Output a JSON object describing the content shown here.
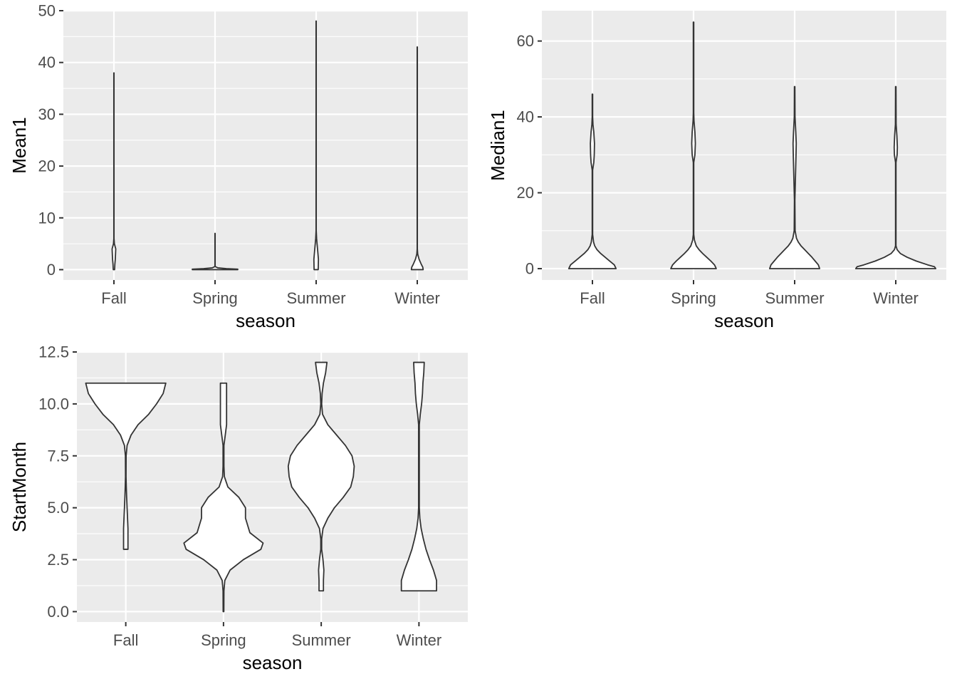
{
  "chart_data": [
    {
      "type": "violin",
      "xlabel": "season",
      "ylabel": "Mean1",
      "categories": [
        "Fall",
        "Spring",
        "Summer",
        "Winter"
      ],
      "ylim": [
        -2,
        50
      ],
      "y_ticks": [
        0,
        10,
        20,
        30,
        40,
        50
      ],
      "y_tick_labels": [
        "0",
        "10",
        "20",
        "30",
        "40",
        "50"
      ],
      "grid": true,
      "violins": [
        {
          "category": "Fall",
          "profile": [
            [
              0,
              0.015
            ],
            [
              1,
              0.02
            ],
            [
              2,
              0.03
            ],
            [
              3,
              0.035
            ],
            [
              4,
              0.04
            ],
            [
              5,
              0.01
            ],
            [
              6,
              0.0022
            ],
            [
              38,
              0.0022
            ]
          ]
        },
        {
          "category": "Spring",
          "profile": [
            [
              0,
              0.5
            ],
            [
              0.1,
              0.5
            ],
            [
              0.2,
              0.25
            ],
            [
              0.35,
              0.06
            ],
            [
              0.6,
              0.0022
            ],
            [
              7,
              0.0022
            ]
          ]
        },
        {
          "category": "Summer",
          "profile": [
            [
              0,
              0.045
            ],
            [
              2,
              0.05
            ],
            [
              4,
              0.03
            ],
            [
              6,
              0.01
            ],
            [
              7.5,
              0.0022
            ],
            [
              48,
              0.0022
            ]
          ]
        },
        {
          "category": "Winter",
          "profile": [
            [
              0,
              0.13
            ],
            [
              0.5,
              0.12
            ],
            [
              1,
              0.09
            ],
            [
              2,
              0.04
            ],
            [
              3,
              0.01
            ],
            [
              4,
              0.0022
            ],
            [
              43,
              0.0022
            ]
          ]
        }
      ]
    },
    {
      "type": "violin",
      "xlabel": "season",
      "ylabel": "Median1",
      "categories": [
        "Fall",
        "Spring",
        "Summer",
        "Winter"
      ],
      "ylim": [
        -3,
        68
      ],
      "y_ticks": [
        0,
        20,
        40,
        60
      ],
      "y_tick_labels": [
        "0",
        "20",
        "40",
        "60"
      ],
      "grid": true,
      "violins": [
        {
          "category": "Fall",
          "profile": [
            [
              0,
              0.52
            ],
            [
              1,
              0.48
            ],
            [
              2,
              0.38
            ],
            [
              3,
              0.28
            ],
            [
              4,
              0.18
            ],
            [
              5,
              0.1
            ],
            [
              6,
              0.05
            ],
            [
              7,
              0.025
            ],
            [
              9,
              0.005
            ],
            [
              26,
              0.005
            ],
            [
              28,
              0.03
            ],
            [
              30,
              0.04
            ],
            [
              33,
              0.045
            ],
            [
              36,
              0.03
            ],
            [
              38,
              0.012
            ],
            [
              40,
              0.005
            ],
            [
              46,
              0.005
            ]
          ]
        },
        {
          "category": "Spring",
          "profile": [
            [
              0,
              0.5
            ],
            [
              1,
              0.46
            ],
            [
              2,
              0.38
            ],
            [
              3,
              0.29
            ],
            [
              4,
              0.2
            ],
            [
              5,
              0.12
            ],
            [
              6,
              0.06
            ],
            [
              7.5,
              0.02
            ],
            [
              9,
              0.005
            ],
            [
              28,
              0.005
            ],
            [
              30,
              0.03
            ],
            [
              33,
              0.04
            ],
            [
              36,
              0.03
            ],
            [
              39,
              0.01
            ],
            [
              41,
              0.005
            ],
            [
              65,
              0.005
            ]
          ]
        },
        {
          "category": "Summer",
          "profile": [
            [
              0,
              0.55
            ],
            [
              1,
              0.52
            ],
            [
              2,
              0.45
            ],
            [
              3,
              0.38
            ],
            [
              4,
              0.3
            ],
            [
              5,
              0.22
            ],
            [
              6,
              0.14
            ],
            [
              7,
              0.08
            ],
            [
              8,
              0.04
            ],
            [
              10,
              0.01
            ],
            [
              18,
              0.005
            ],
            [
              30,
              0.03
            ],
            [
              33,
              0.035
            ],
            [
              36,
              0.025
            ],
            [
              40,
              0.008
            ],
            [
              48,
              0.005
            ]
          ]
        },
        {
          "category": "Winter",
          "profile": [
            [
              0,
              0.88
            ],
            [
              0.5,
              0.85
            ],
            [
              1,
              0.7
            ],
            [
              2,
              0.45
            ],
            [
              3,
              0.25
            ],
            [
              4,
              0.1
            ],
            [
              5,
              0.03
            ],
            [
              6,
              0.005
            ],
            [
              28,
              0.005
            ],
            [
              30,
              0.03
            ],
            [
              32,
              0.035
            ],
            [
              35,
              0.025
            ],
            [
              38,
              0.008
            ],
            [
              48,
              0.005
            ]
          ]
        }
      ]
    },
    {
      "type": "violin",
      "xlabel": "season",
      "ylabel": "StartMonth",
      "categories": [
        "Fall",
        "Spring",
        "Summer",
        "Winter"
      ],
      "ylim": [
        -0.5,
        12.5
      ],
      "y_ticks": [
        0,
        2.5,
        5,
        7.5,
        10,
        12.5
      ],
      "y_tick_labels": [
        "0.0",
        "2.5",
        "5.0",
        "7.5",
        "10.0",
        "12.5"
      ],
      "grid": true,
      "violins": [
        {
          "category": "Fall",
          "profile": [
            [
              3,
              0.05
            ],
            [
              3.5,
              0.05
            ],
            [
              4,
              0.05
            ],
            [
              4.5,
              0.04
            ],
            [
              5,
              0.03
            ],
            [
              5.5,
              0.02
            ],
            [
              6,
              0.012
            ],
            [
              6.5,
              0.006
            ],
            [
              7.5,
              0.008
            ],
            [
              8,
              0.03
            ],
            [
              8.5,
              0.12
            ],
            [
              9,
              0.28
            ],
            [
              9.5,
              0.52
            ],
            [
              10,
              0.7
            ],
            [
              10.5,
              0.85
            ],
            [
              11,
              0.91
            ]
          ]
        },
        {
          "category": "Spring",
          "profile": [
            [
              0,
              0.008
            ],
            [
              1,
              0.01
            ],
            [
              1.5,
              0.03
            ],
            [
              2,
              0.15
            ],
            [
              2.5,
              0.45
            ],
            [
              3,
              0.85
            ],
            [
              3.3,
              0.9
            ],
            [
              3.8,
              0.6
            ],
            [
              4.5,
              0.5
            ],
            [
              5,
              0.5
            ],
            [
              5.5,
              0.35
            ],
            [
              6,
              0.1
            ],
            [
              6.5,
              0.02
            ],
            [
              7,
              0.01
            ],
            [
              8,
              0.01
            ],
            [
              8.5,
              0.04
            ],
            [
              9,
              0.07
            ],
            [
              9.5,
              0.07
            ],
            [
              10,
              0.07
            ],
            [
              11,
              0.07
            ]
          ]
        },
        {
          "category": "Summer",
          "profile": [
            [
              1,
              0.05
            ],
            [
              1.5,
              0.05
            ],
            [
              2,
              0.06
            ],
            [
              2.5,
              0.04
            ],
            [
              3,
              0.01
            ],
            [
              3.5,
              0.01
            ],
            [
              4,
              0.04
            ],
            [
              4.5,
              0.15
            ],
            [
              5,
              0.3
            ],
            [
              5.5,
              0.5
            ],
            [
              6,
              0.67
            ],
            [
              6.5,
              0.73
            ],
            [
              7,
              0.75
            ],
            [
              7.5,
              0.7
            ],
            [
              8,
              0.55
            ],
            [
              8.5,
              0.35
            ],
            [
              9,
              0.15
            ],
            [
              9.5,
              0.03
            ],
            [
              10,
              0.01
            ],
            [
              10.5,
              0.02
            ],
            [
              11,
              0.05
            ],
            [
              11.5,
              0.1
            ],
            [
              12,
              0.13
            ]
          ]
        },
        {
          "category": "Winter",
          "profile": [
            [
              1,
              0.4
            ],
            [
              1.5,
              0.4
            ],
            [
              2,
              0.33
            ],
            [
              2.5,
              0.24
            ],
            [
              3,
              0.16
            ],
            [
              3.5,
              0.1
            ],
            [
              4,
              0.05
            ],
            [
              4.5,
              0.02
            ],
            [
              5,
              0.008
            ],
            [
              9,
              0.008
            ],
            [
              9.5,
              0.03
            ],
            [
              10,
              0.06
            ],
            [
              10.5,
              0.08
            ],
            [
              11,
              0.09
            ],
            [
              11.5,
              0.11
            ],
            [
              12,
              0.12
            ]
          ]
        }
      ]
    }
  ]
}
